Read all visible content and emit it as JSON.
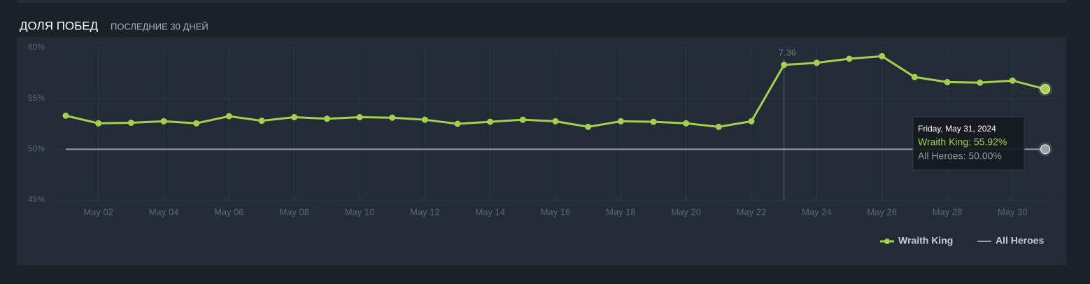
{
  "header": {
    "title": "ДОЛЯ ПОБЕД",
    "subtitle": "ПОСЛЕДНИЕ 30 ДНЕЙ"
  },
  "chart_data": {
    "type": "line",
    "categories": [
      null,
      "May 02",
      null,
      "May 04",
      null,
      "May 06",
      null,
      "May 08",
      null,
      "May 10",
      null,
      "May 12",
      null,
      "May 14",
      null,
      "May 16",
      null,
      "May 18",
      null,
      "May 20",
      null,
      "May 22",
      null,
      "May 24",
      null,
      "May 26",
      null,
      "May 28",
      null,
      "May 30",
      null
    ],
    "series": [
      {
        "name": "Wraith King",
        "color": "#a4cf4f",
        "values": [
          53.3,
          52.55,
          52.6,
          52.75,
          52.55,
          53.25,
          52.8,
          53.15,
          53.0,
          53.15,
          53.1,
          52.9,
          52.5,
          52.7,
          52.9,
          52.75,
          52.2,
          52.75,
          52.7,
          52.55,
          52.2,
          52.75,
          58.3,
          58.5,
          58.9,
          59.15,
          57.1,
          56.6,
          56.55,
          56.75,
          55.92
        ]
      },
      {
        "name": "All Heroes",
        "color": "#9b9fa4",
        "values": [
          50,
          50,
          50,
          50,
          50,
          50,
          50,
          50,
          50,
          50,
          50,
          50,
          50,
          50,
          50,
          50,
          50,
          50,
          50,
          50,
          50,
          50,
          50,
          50,
          50,
          50,
          50,
          50,
          50,
          50,
          50
        ]
      }
    ],
    "ylim": [
      45,
      60
    ],
    "yticks": [
      {
        "value": 45,
        "label": "45%"
      },
      {
        "value": 50,
        "label": "50%"
      },
      {
        "value": 55,
        "label": "55%"
      },
      {
        "value": 60,
        "label": "60%"
      }
    ],
    "grid": true,
    "legend": "bottom-right",
    "annotations": [
      {
        "text": "7.36",
        "index": 22
      }
    ],
    "tooltip": {
      "title": "Friday, May 31, 2024",
      "lines": [
        "Wraith King: 55.92%",
        "All Heroes: 50.00%"
      ]
    }
  }
}
